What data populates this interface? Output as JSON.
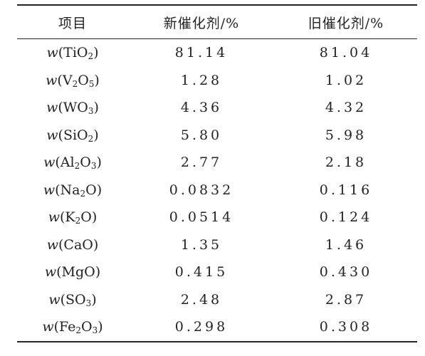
{
  "table": {
    "headers": [
      "项目",
      "新催化剂/%",
      "旧催化剂/%"
    ],
    "rows": [
      {
        "prefix": "w",
        "parts": [
          {
            "t": "TiO"
          },
          {
            "s": "2"
          }
        ],
        "new": "81.14",
        "old": "81.04"
      },
      {
        "prefix": "w",
        "parts": [
          {
            "t": "V"
          },
          {
            "s": "2"
          },
          {
            "t": "O"
          },
          {
            "s": "5"
          }
        ],
        "new": "1.28",
        "old": "1.02"
      },
      {
        "prefix": "w",
        "parts": [
          {
            "t": "WO"
          },
          {
            "s": "3"
          }
        ],
        "new": "4.36",
        "old": "4.32"
      },
      {
        "prefix": "w",
        "parts": [
          {
            "t": "SiO"
          },
          {
            "s": "2"
          }
        ],
        "new": "5.80",
        "old": "5.98"
      },
      {
        "prefix": "w",
        "parts": [
          {
            "t": "Al"
          },
          {
            "s": "2"
          },
          {
            "t": "O"
          },
          {
            "s": "3"
          }
        ],
        "new": "2.77",
        "old": "2.18"
      },
      {
        "prefix": "w",
        "parts": [
          {
            "t": "Na"
          },
          {
            "s": "2"
          },
          {
            "t": "O"
          }
        ],
        "new": "0.0832",
        "old": "0.116"
      },
      {
        "prefix": "w",
        "parts": [
          {
            "t": "K"
          },
          {
            "s": "2"
          },
          {
            "t": "O"
          }
        ],
        "new": "0.0514",
        "old": "0.124"
      },
      {
        "prefix": "w",
        "parts": [
          {
            "t": "CaO"
          }
        ],
        "new": "1.35",
        "old": "1.46"
      },
      {
        "prefix": "w",
        "parts": [
          {
            "t": "MgO"
          }
        ],
        "new": "0.415",
        "old": "0.430"
      },
      {
        "prefix": "w",
        "parts": [
          {
            "t": "SO"
          },
          {
            "s": "3"
          }
        ],
        "new": "2.48",
        "old": "2.87"
      },
      {
        "prefix": "w",
        "parts": [
          {
            "t": "Fe"
          },
          {
            "s": "2"
          },
          {
            "t": "O"
          },
          {
            "s": "3"
          }
        ],
        "new": "0.298",
        "old": "0.308"
      }
    ]
  }
}
